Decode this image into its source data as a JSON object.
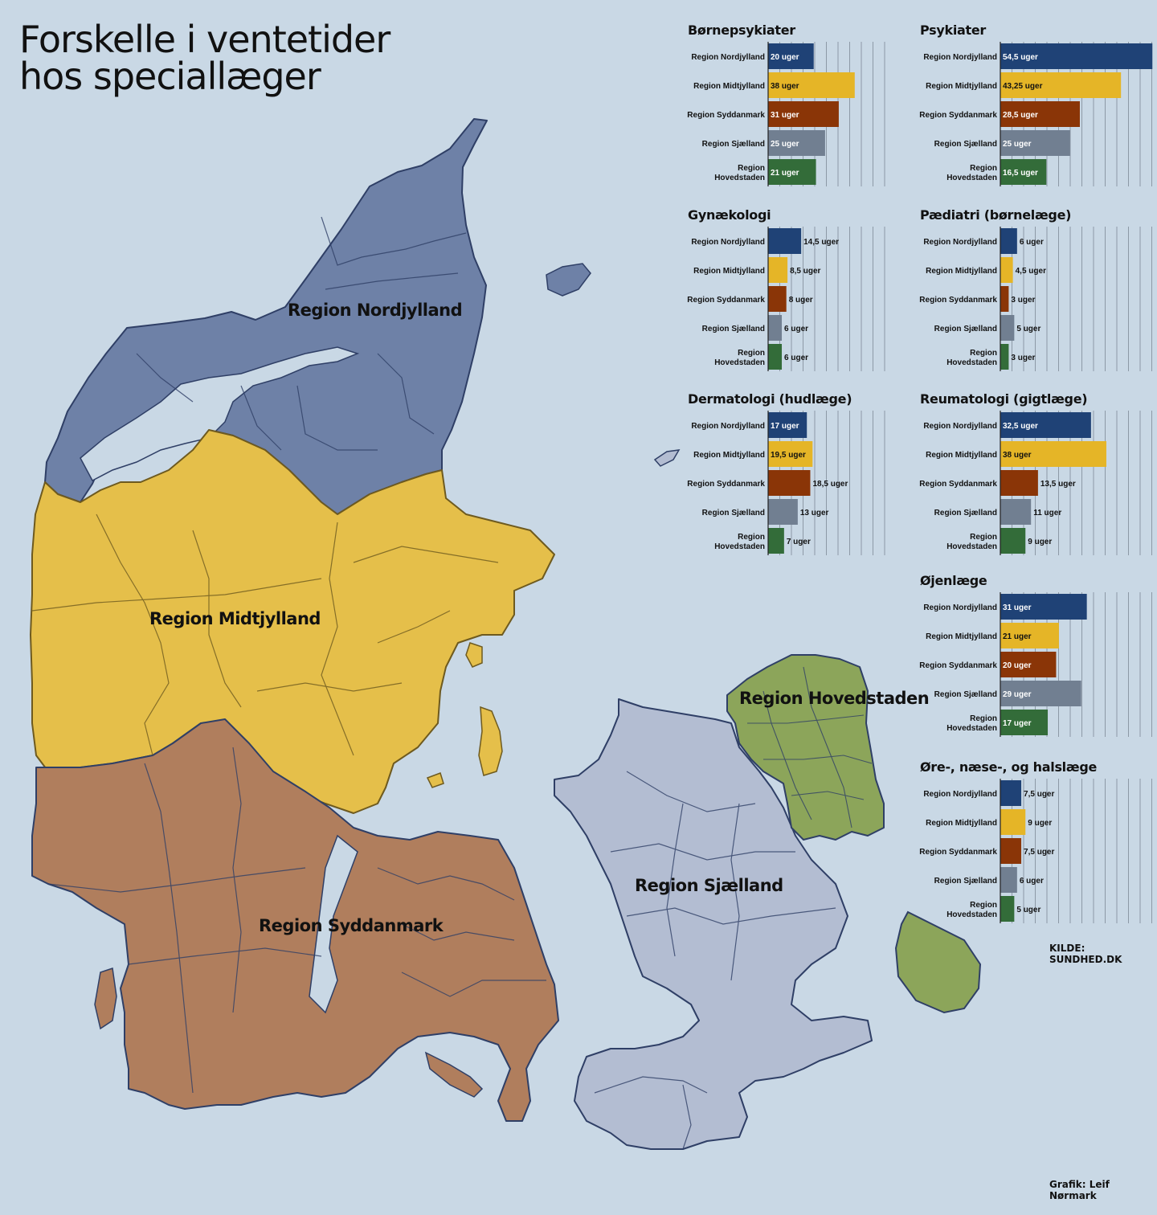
{
  "title": {
    "line1": "Forskelle i ventetider",
    "line2": "hos speciallæger"
  },
  "map_labels": {
    "nordjylland": "Region Nordjylland",
    "midtjylland": "Region Midtjylland",
    "syddanmark": "Region Syddanmark",
    "sjaelland": "Region Sjælland",
    "hovedstaden": "Region Hovedstaden"
  },
  "colors": {
    "background": "#c9d8e5",
    "nordjylland": "#6e81a7",
    "midtjylland": "#e5bf4a",
    "syddanmark": "#b07e5d",
    "sjaelland": "#b3bdd2",
    "hovedstaden": "#8ca55a",
    "bar_nordjylland": "#1f4276",
    "bar_midtjylland": "#e5b527",
    "bar_syddanmark": "#8a3507",
    "bar_sjaelland": "#717f91",
    "bar_hovedstaden": "#336c39"
  },
  "source": "KILDE: SUNDHED.DK",
  "credit": "Grafik: Leif Nørmark",
  "chart_data": [
    {
      "type": "bar",
      "title": "Børnepsykiater",
      "categories": [
        "Region Nordjylland",
        "Region Midtjylland",
        "Region Syddanmark",
        "Region Sjælland",
        "Region Hovedstaden"
      ],
      "values": [
        20,
        38,
        31,
        25,
        21
      ],
      "labels": [
        "20 uger",
        "38 uger",
        "31 uger",
        "25 uger",
        "21 uger"
      ],
      "xlim": [
        0,
        55
      ],
      "grid": true
    },
    {
      "type": "bar",
      "title": "Psykiater",
      "categories": [
        "Region Nordjylland",
        "Region Midtjylland",
        "Region Syddanmark",
        "Region Sjælland",
        "Region Hovedstaden"
      ],
      "values": [
        54.5,
        43.25,
        28.5,
        25,
        16.5
      ],
      "labels": [
        "54,5 uger",
        "43,25 uger",
        "28,5 uger",
        "25 uger",
        "16,5 uger"
      ],
      "xlim": [
        0,
        55
      ],
      "grid": true
    },
    {
      "type": "bar",
      "title": "Gynækologi",
      "categories": [
        "Region Nordjylland",
        "Region Midtjylland",
        "Region Syddanmark",
        "Region Sjælland",
        "Region Hovedstaden"
      ],
      "values": [
        14.5,
        8.5,
        8,
        6,
        6
      ],
      "labels": [
        "14,5 uger",
        "8,5 uger",
        "8 uger",
        "6 uger",
        "6 uger"
      ],
      "xlim": [
        0,
        55
      ],
      "grid": true
    },
    {
      "type": "bar",
      "title": "Pædiatri (børnelæge)",
      "categories": [
        "Region Nordjylland",
        "Region Midtjylland",
        "Region Syddanmark",
        "Region Sjælland",
        "Region Hovedstaden"
      ],
      "values": [
        6,
        4.5,
        3,
        5,
        3
      ],
      "labels": [
        "6 uger",
        "4,5 uger",
        "3 uger",
        "5 uger",
        "3 uger"
      ],
      "xlim": [
        0,
        55
      ],
      "grid": true
    },
    {
      "type": "bar",
      "title": "Dermatologi (hudlæge)",
      "categories": [
        "Region Nordjylland",
        "Region Midtjylland",
        "Region Syddanmark",
        "Region Sjælland",
        "Region Hovedstaden"
      ],
      "values": [
        17,
        19.5,
        18.5,
        13,
        7
      ],
      "labels": [
        "17 uger",
        "19,5 uger",
        "18,5 uger",
        "13 uger",
        "7 uger"
      ],
      "xlim": [
        0,
        55
      ],
      "grid": true
    },
    {
      "type": "bar",
      "title": "Reumatologi (gigtlæge)",
      "categories": [
        "Region Nordjylland",
        "Region Midtjylland",
        "Region Syddanmark",
        "Region Sjælland",
        "Region Hovedstaden"
      ],
      "values": [
        32.5,
        38,
        13.5,
        11,
        9
      ],
      "labels": [
        "32,5 uger",
        "38 uger",
        "13,5 uger",
        "11 uger",
        "9 uger"
      ],
      "xlim": [
        0,
        55
      ],
      "grid": true
    },
    {
      "type": "bar",
      "title": "Øjenlæge",
      "categories": [
        "Region Nordjylland",
        "Region Midtjylland",
        "Region Syddanmark",
        "Region Sjælland",
        "Region Hovedstaden"
      ],
      "values": [
        31,
        21,
        20,
        29,
        17
      ],
      "labels": [
        "31 uger",
        "21 uger",
        "20 uger",
        "29 uger",
        "17 uger"
      ],
      "xlim": [
        0,
        55
      ],
      "grid": true
    },
    {
      "type": "bar",
      "title": "Øre-, næse-, og halslæge",
      "categories": [
        "Region Nordjylland",
        "Region Midtjylland",
        "Region Syddanmark",
        "Region Sjælland",
        "Region Hovedstaden"
      ],
      "values": [
        7.5,
        9,
        7.5,
        6,
        5
      ],
      "labels": [
        "7,5 uger",
        "9 uger",
        "7,5 uger",
        "6 uger",
        "5 uger"
      ],
      "xlim": [
        0,
        55
      ],
      "grid": true
    }
  ]
}
